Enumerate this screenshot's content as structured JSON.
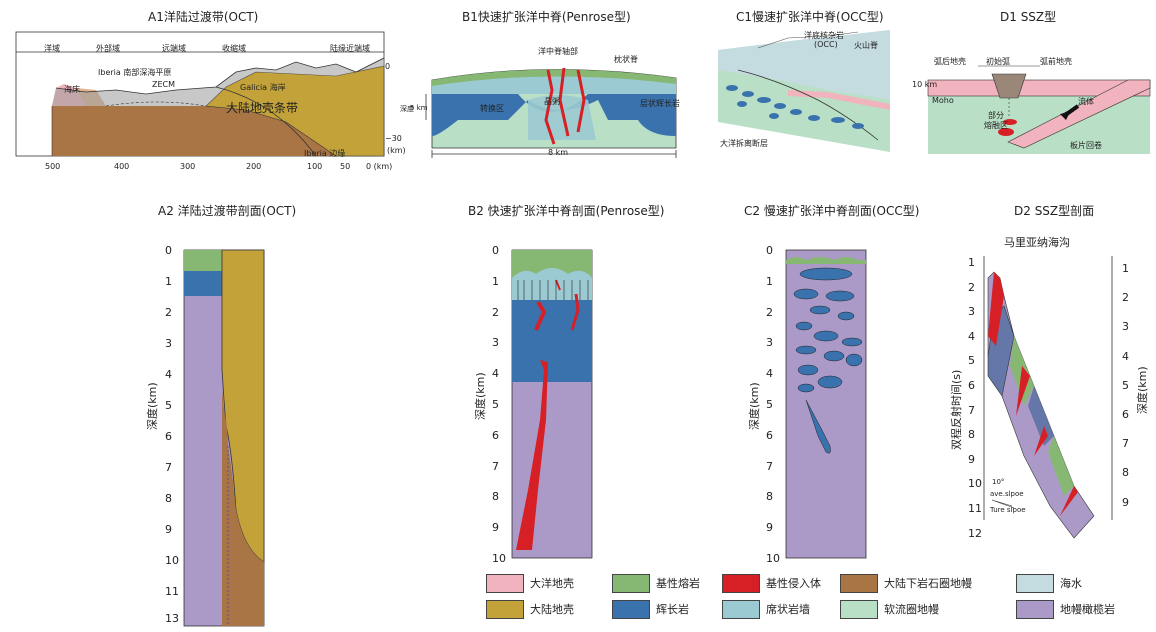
{
  "titles": {
    "a1": "A1洋陆过渡带(OCT)",
    "b1": "B1快速扩张洋中脊(Penrose型)",
    "c1": "C1慢速扩张洋中脊(OCC型)",
    "d1": "D1 SSZ型",
    "a2": "A2 洋陆过渡带剖面(OCT)",
    "b2": "B2 快速扩张洋中脊剖面(Penrose型)",
    "c2": "C2 慢速扩张洋中脊剖面(OCC型)",
    "d2": "D2 SSZ型剖面"
  },
  "a1": {
    "domains": [
      "洋域",
      "外部域",
      "远端域",
      "收缩域",
      "陆缘近端域"
    ],
    "labels": {
      "seafloor": "海床",
      "plain": "Iberia 南部深海平原",
      "zecm": "ZECM",
      "galicia": "Galicia 海岸",
      "belt": "大陆地壳条带",
      "margin": "Iberia 边缘",
      "top": "0",
      "bottom": "−30",
      "unit": "(km)"
    },
    "xticks": [
      "500",
      "400",
      "300",
      "200",
      "100",
      "50",
      "0 (km)"
    ]
  },
  "b1": {
    "labels": {
      "axis": "洋中脊轴部",
      "pillow": "枕状脊",
      "depth": "深度",
      "depth_scale": "5 km",
      "transition": "转换区",
      "mush": "晶粥",
      "layered": "层状辉长岩",
      "scale": "8 km"
    }
  },
  "c1": {
    "labels": {
      "occ": "洋底核杂岩",
      "occ_abbr": "(OCC)",
      "volcanic": "火山脊",
      "fault": "大洋拆离断层"
    }
  },
  "d1": {
    "labels": {
      "back_arc": "弧后地壳",
      "initial_arc": "初始弧",
      "fore_arc": "弧前地壳",
      "scale": "10 km",
      "moho": "Moho",
      "fluid": "流体",
      "partial": "部分",
      "melt": "熔融区",
      "rollback": "板片回卷"
    }
  },
  "columns": {
    "depth_label": "深度(km)",
    "a2_ticks": [
      "0",
      "1",
      "2",
      "3",
      "4",
      "5",
      "6",
      "7",
      "8",
      "9",
      "10",
      "11",
      "13"
    ],
    "bc_ticks": [
      "0",
      "1",
      "2",
      "3",
      "4",
      "5",
      "6",
      "7",
      "8",
      "9",
      "10"
    ]
  },
  "d2": {
    "subtitle": "马里亚纳海沟",
    "left_axis": "双程反射时间(s)",
    "right_axis": "深度(km)",
    "left_ticks": [
      "1",
      "2",
      "3",
      "4",
      "5",
      "6",
      "7",
      "8",
      "9",
      "10",
      "11",
      "12"
    ],
    "right_ticks": [
      "1",
      "2",
      "3",
      "4",
      "5",
      "6",
      "7",
      "8",
      "9"
    ],
    "slope_angle": "10°",
    "ave_slope": "ave.slpoe",
    "true_slope": "Ture slpoe"
  },
  "legend": [
    {
      "label": "大洋地壳",
      "color": "#f1b3bd"
    },
    {
      "label": "基性熔岩",
      "color": "#86b874"
    },
    {
      "label": "基性侵入体",
      "color": "#d62026"
    },
    {
      "label": "大陆下岩石圈地幔",
      "color": "#a97545"
    },
    {
      "label": "海水",
      "color": "#c4dbe0"
    },
    {
      "label": "大陆地壳",
      "color": "#c4a23a"
    },
    {
      "label": "辉长岩",
      "color": "#3a72ad"
    },
    {
      "label": "席状岩墙",
      "color": "#9ccad2"
    },
    {
      "label": "软流圈地幔",
      "color": "#b9e0c6"
    },
    {
      "label": "地幔橄榄岩",
      "color": "#ab9ac8"
    }
  ]
}
